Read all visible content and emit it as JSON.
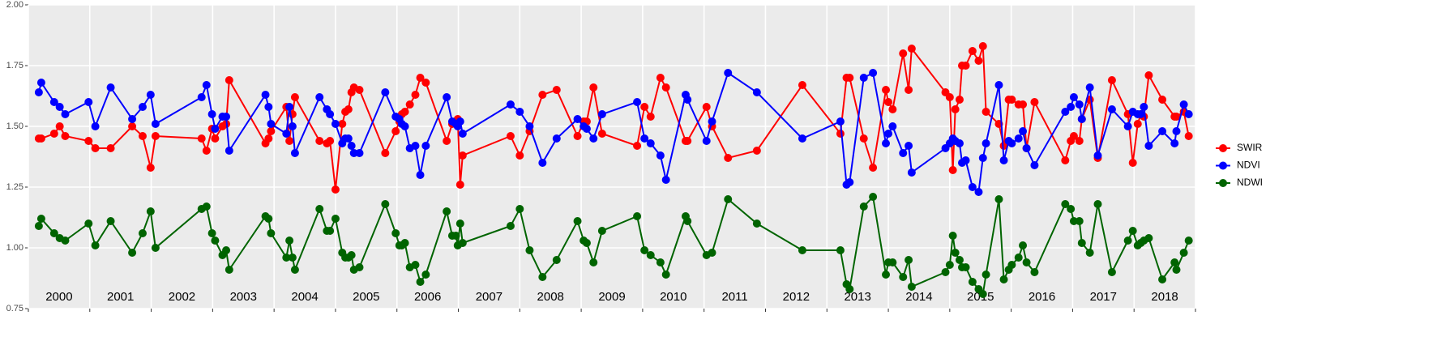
{
  "chart_data": {
    "type": "line",
    "x": [
      2000.17,
      2000.21,
      2000.42,
      2000.51,
      2000.6,
      2000.98,
      2001.09,
      2001.34,
      2001.69,
      2001.86,
      2001.99,
      2002.07,
      2002.82,
      2002.9,
      2002.99,
      2003.04,
      2003.16,
      2003.22,
      2003.27,
      2003.86,
      2003.91,
      2003.95,
      2004.2,
      2004.25,
      2004.3,
      2004.34,
      2004.74,
      2004.86,
      2004.91,
      2005.0,
      2005.11,
      2005.16,
      2005.21,
      2005.26,
      2005.3,
      2005.39,
      2005.81,
      2005.98,
      2006.04,
      2006.08,
      2006.13,
      2006.21,
      2006.3,
      2006.38,
      2006.47,
      2006.81,
      2006.9,
      2006.96,
      2006.99,
      2007.03,
      2007.07,
      2007.85,
      2008.0,
      2008.16,
      2008.37,
      2008.6,
      2008.94,
      2009.04,
      2009.09,
      2009.2,
      2009.34,
      2009.91,
      2010.03,
      2010.13,
      2010.29,
      2010.38,
      2010.7,
      2010.73,
      2011.04,
      2011.13,
      2011.39,
      2011.86,
      2012.6,
      2013.22,
      2013.32,
      2013.37,
      2013.6,
      2013.75,
      2013.96,
      2014.0,
      2014.07,
      2014.24,
      2014.33,
      2014.38,
      2014.93,
      2015.0,
      2015.05,
      2015.09,
      2015.16,
      2015.2,
      2015.26,
      2015.37,
      2015.47,
      2015.54,
      2015.59,
      2015.8,
      2015.88,
      2015.96,
      2016.01,
      2016.12,
      2016.19,
      2016.25,
      2016.38,
      2016.88,
      2016.97,
      2017.02,
      2017.11,
      2017.15,
      2017.28,
      2017.41,
      2017.64,
      2017.9,
      2017.98,
      2018.06,
      2018.11,
      2018.16,
      2018.24,
      2018.46,
      2018.66,
      2018.69,
      2018.81,
      2018.89
    ],
    "series": [
      {
        "name": "SWIR",
        "color": "#ff0000",
        "values": [
          1.45,
          1.45,
          1.47,
          1.5,
          1.46,
          1.44,
          1.41,
          1.41,
          1.5,
          1.46,
          1.33,
          1.46,
          1.45,
          1.4,
          1.49,
          1.45,
          1.5,
          1.51,
          1.69,
          1.43,
          1.45,
          1.48,
          1.58,
          1.44,
          1.55,
          1.62,
          1.44,
          1.43,
          1.44,
          1.24,
          1.51,
          1.56,
          1.57,
          1.64,
          1.66,
          1.65,
          1.39,
          1.48,
          1.52,
          1.55,
          1.56,
          1.59,
          1.63,
          1.7,
          1.68,
          1.44,
          1.51,
          1.52,
          1.53,
          1.26,
          1.38,
          1.46,
          1.38,
          1.48,
          1.63,
          1.65,
          1.46,
          1.52,
          1.52,
          1.66,
          1.47,
          1.42,
          1.58,
          1.54,
          1.7,
          1.66,
          1.44,
          1.44,
          1.58,
          1.5,
          1.37,
          1.4,
          1.67,
          1.47,
          1.7,
          1.7,
          1.45,
          1.33,
          1.65,
          1.6,
          1.57,
          1.8,
          1.65,
          1.82,
          1.64,
          1.62,
          1.32,
          1.57,
          1.61,
          1.75,
          1.75,
          1.81,
          1.77,
          1.83,
          1.56,
          1.51,
          1.42,
          1.61,
          1.61,
          1.59,
          1.59,
          1.41,
          1.6,
          1.36,
          1.44,
          1.46,
          1.44,
          1.53,
          1.61,
          1.37,
          1.69,
          1.55,
          1.35,
          1.51,
          1.55,
          1.54,
          1.71,
          1.61,
          1.54,
          1.54,
          1.56,
          1.46
        ]
      },
      {
        "name": "NDVI",
        "color": "#0000ff",
        "values": [
          1.64,
          1.68,
          1.6,
          1.58,
          1.55,
          1.6,
          1.5,
          1.66,
          1.53,
          1.58,
          1.63,
          1.51,
          1.62,
          1.67,
          1.55,
          1.49,
          1.54,
          1.54,
          1.4,
          1.63,
          1.58,
          1.51,
          1.47,
          1.58,
          1.5,
          1.39,
          1.62,
          1.57,
          1.55,
          1.51,
          1.43,
          1.45,
          1.45,
          1.42,
          1.39,
          1.39,
          1.64,
          1.54,
          1.53,
          1.51,
          1.5,
          1.41,
          1.42,
          1.3,
          1.42,
          1.62,
          1.52,
          1.51,
          1.5,
          1.52,
          1.47,
          1.59,
          1.56,
          1.5,
          1.35,
          1.45,
          1.53,
          1.5,
          1.49,
          1.45,
          1.55,
          1.6,
          1.45,
          1.43,
          1.38,
          1.28,
          1.63,
          1.61,
          1.44,
          1.52,
          1.72,
          1.64,
          1.45,
          1.52,
          1.26,
          1.27,
          1.7,
          1.72,
          1.43,
          1.47,
          1.5,
          1.39,
          1.42,
          1.31,
          1.41,
          1.43,
          1.45,
          1.44,
          1.43,
          1.35,
          1.36,
          1.25,
          1.23,
          1.37,
          1.43,
          1.67,
          1.36,
          1.44,
          1.43,
          1.45,
          1.48,
          1.41,
          1.34,
          1.56,
          1.58,
          1.62,
          1.59,
          1.53,
          1.66,
          1.38,
          1.57,
          1.5,
          1.56,
          1.55,
          1.55,
          1.58,
          1.42,
          1.48,
          1.43,
          1.48,
          1.59,
          1.55
        ]
      },
      {
        "name": "NDWI",
        "color": "#006400",
        "values": [
          1.09,
          1.12,
          1.06,
          1.04,
          1.03,
          1.1,
          1.01,
          1.11,
          0.98,
          1.06,
          1.15,
          1.0,
          1.16,
          1.17,
          1.06,
          1.03,
          0.97,
          0.99,
          0.91,
          1.13,
          1.12,
          1.06,
          0.96,
          1.03,
          0.96,
          0.91,
          1.16,
          1.07,
          1.07,
          1.12,
          0.98,
          0.96,
          0.96,
          0.97,
          0.91,
          0.92,
          1.18,
          1.06,
          1.01,
          1.01,
          1.02,
          0.92,
          0.93,
          0.86,
          0.89,
          1.15,
          1.05,
          1.05,
          1.01,
          1.1,
          1.02,
          1.09,
          1.16,
          0.99,
          0.88,
          0.95,
          1.11,
          1.03,
          1.02,
          0.94,
          1.07,
          1.13,
          0.99,
          0.97,
          0.94,
          0.89,
          1.13,
          1.11,
          0.97,
          0.98,
          1.2,
          1.1,
          0.99,
          0.99,
          0.85,
          0.83,
          1.17,
          1.21,
          0.89,
          0.94,
          0.94,
          0.88,
          0.95,
          0.84,
          0.9,
          0.93,
          1.05,
          0.98,
          0.95,
          0.92,
          0.92,
          0.86,
          0.83,
          0.81,
          0.89,
          1.2,
          0.87,
          0.91,
          0.93,
          0.96,
          1.01,
          0.94,
          0.9,
          1.18,
          1.16,
          1.11,
          1.11,
          1.02,
          0.98,
          1.18,
          0.9,
          1.03,
          1.07,
          1.01,
          1.02,
          1.03,
          1.04,
          0.87,
          0.94,
          0.91,
          0.98,
          1.03
        ]
      }
    ],
    "xlim": [
      2000,
      2019
    ],
    "xticks": [
      2000,
      2001,
      2002,
      2003,
      2004,
      2005,
      2006,
      2007,
      2008,
      2009,
      2010,
      2011,
      2012,
      2013,
      2014,
      2015,
      2016,
      2017,
      2018,
      2019
    ],
    "year_labels": [
      "2000",
      "2001",
      "2002",
      "2003",
      "2004",
      "2005",
      "2006",
      "2007",
      "2008",
      "2009",
      "2010",
      "2011",
      "2012",
      "2013",
      "2014",
      "2015",
      "2016",
      "2017",
      "2018"
    ],
    "ylim": [
      0.75,
      2.0
    ],
    "yticks": [
      {
        "value": 0.75,
        "label": "0.75"
      },
      {
        "value": 1.0,
        "label": "1.00"
      },
      {
        "value": 1.25,
        "label": "1.25"
      },
      {
        "value": 1.5,
        "label": "1.50"
      },
      {
        "value": 1.75,
        "label": "1.75"
      },
      {
        "value": 2.0,
        "label": "2.00"
      }
    ],
    "grid": true,
    "legend": "right"
  }
}
